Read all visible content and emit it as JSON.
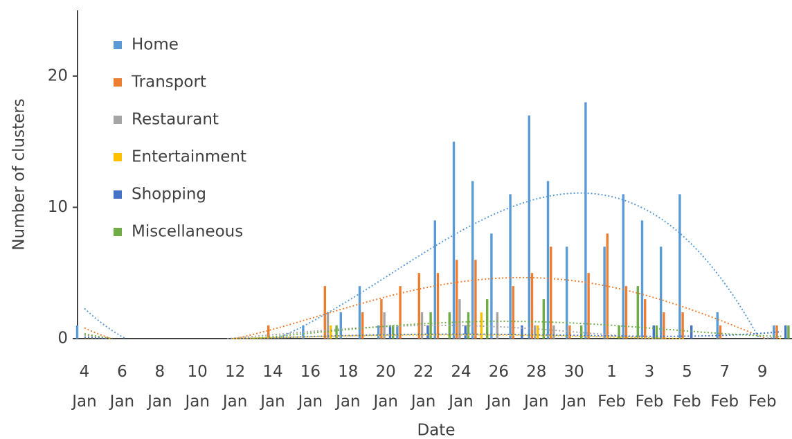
{
  "chart_data": {
    "type": "bar",
    "xlabel": "Date",
    "ylabel": "Number of clusters",
    "categories": [
      "4 Jan",
      null,
      "6 Jan",
      null,
      "8 Jan",
      null,
      "10 Jan",
      null,
      "12 Jan",
      null,
      "14 Jan",
      null,
      "16 Jan",
      null,
      "18 Jan",
      null,
      "20 Jan",
      null,
      "22 Jan",
      null,
      "24 Jan",
      null,
      "26 Jan",
      null,
      "28 Jan",
      null,
      "30 Jan",
      null,
      "1 Feb",
      null,
      "3 Feb",
      null,
      "5 Feb",
      null,
      "7 Feb",
      null,
      "9 Feb",
      null
    ],
    "series": [
      {
        "name": "Home",
        "color": "#5b9bd5",
        "values": [
          1,
          0,
          0,
          0,
          0,
          0,
          0,
          0,
          0,
          0,
          0,
          0,
          1,
          0,
          2,
          4,
          1,
          1,
          0,
          9,
          15,
          12,
          8,
          11,
          17,
          12,
          7,
          18,
          7,
          11,
          9,
          7,
          11,
          0,
          2,
          0,
          0,
          1
        ]
      },
      {
        "name": "Transport",
        "color": "#ed7d31",
        "values": [
          0,
          0,
          0,
          0,
          0,
          0,
          0,
          0,
          0,
          0,
          1,
          0,
          0,
          4,
          0,
          2,
          3,
          4,
          5,
          5,
          6,
          6,
          0,
          4,
          5,
          7,
          1,
          5,
          8,
          4,
          3,
          2,
          2,
          0,
          1,
          0,
          0,
          1
        ]
      },
      {
        "name": "Restaurant",
        "color": "#a5a5a5",
        "values": [
          0,
          0,
          0,
          0,
          0,
          0,
          0,
          0,
          0,
          0,
          0,
          0,
          0,
          2,
          0,
          0,
          2,
          0,
          2,
          0,
          3,
          0,
          2,
          0,
          1,
          1,
          0,
          0,
          0,
          0,
          0,
          0,
          0,
          0,
          0,
          0,
          0,
          0
        ]
      },
      {
        "name": "Entertainment",
        "color": "#ffc000",
        "values": [
          0,
          0,
          0,
          0,
          0,
          0,
          0,
          0,
          0,
          0,
          0,
          0,
          0,
          1,
          0,
          0,
          0,
          0,
          0,
          0,
          0,
          2,
          0,
          0,
          1,
          0,
          0,
          0,
          0,
          0,
          0,
          0,
          0,
          0,
          0,
          0,
          0,
          0
        ]
      },
      {
        "name": "Shopping",
        "color": "#4472c4",
        "values": [
          0,
          0,
          0,
          0,
          0,
          0,
          0,
          0,
          0,
          0,
          0,
          0,
          0,
          0,
          0,
          0,
          1,
          0,
          1,
          0,
          1,
          0,
          0,
          1,
          0,
          0,
          0,
          0,
          0,
          0,
          1,
          0,
          1,
          0,
          0,
          0,
          0,
          1
        ]
      },
      {
        "name": "Miscellaneous",
        "color": "#70ad47",
        "values": [
          0,
          0,
          0,
          0,
          0,
          0,
          0,
          0,
          0,
          0,
          0,
          0,
          0,
          1,
          0,
          0,
          1,
          0,
          2,
          2,
          2,
          3,
          0,
          0,
          3,
          0,
          1,
          0,
          1,
          4,
          1,
          0,
          0,
          0,
          0,
          0,
          0,
          1
        ]
      }
    ],
    "ylim": [
      0,
      25
    ],
    "yticks": [
      0,
      10,
      20
    ],
    "legend": "top-left",
    "trendline_order": 4
  }
}
